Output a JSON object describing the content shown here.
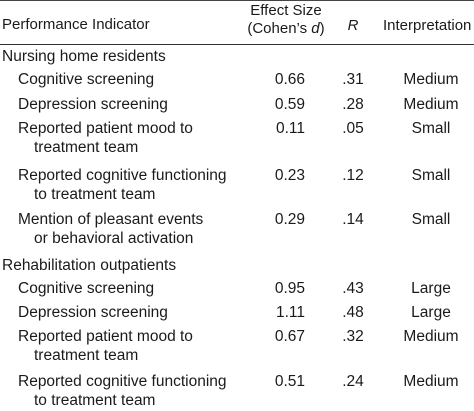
{
  "header": {
    "indicator": "Performance Indicator",
    "effect_line1": "Effect Size",
    "effect_line2_prefix": "(Cohen’s ",
    "effect_line2_var": "d",
    "effect_line2_suffix": ")",
    "r": "R",
    "interpretation": "Interpretation"
  },
  "sections": [
    {
      "title": "Nursing home residents",
      "rows": [
        {
          "indicator": [
            "Cognitive screening"
          ],
          "es": "0.66",
          "r": ".31",
          "interp": "Medium"
        },
        {
          "indicator": [
            "Depression screening"
          ],
          "es": "0.59",
          "r": ".28",
          "interp": "Medium"
        },
        {
          "indicator": [
            "Reported patient mood to",
            "treatment team"
          ],
          "es": "0.11",
          "r": ".05",
          "interp": "Small"
        },
        {
          "indicator": [
            "Reported cognitive functioning",
            "to treatment team"
          ],
          "es": "0.23",
          "r": ".12",
          "interp": "Small"
        },
        {
          "indicator": [
            "Mention of pleasant events",
            "or behavioral activation"
          ],
          "es": "0.29",
          "r": ".14",
          "interp": "Small"
        }
      ]
    },
    {
      "title": "Rehabilitation outpatients",
      "rows": [
        {
          "indicator": [
            "Cognitive screening"
          ],
          "es": "0.95",
          "r": ".43",
          "interp": "Large"
        },
        {
          "indicator": [
            "Depression screening"
          ],
          "es": "1.11",
          "r": ".48",
          "interp": "Large"
        },
        {
          "indicator": [
            "Reported patient mood to",
            "treatment team"
          ],
          "es": "0.67",
          "r": ".32",
          "interp": "Medium"
        },
        {
          "indicator": [
            "Reported cognitive functioning",
            "to treatment team"
          ],
          "es": "0.51",
          "r": ".24",
          "interp": "Medium"
        }
      ]
    }
  ]
}
